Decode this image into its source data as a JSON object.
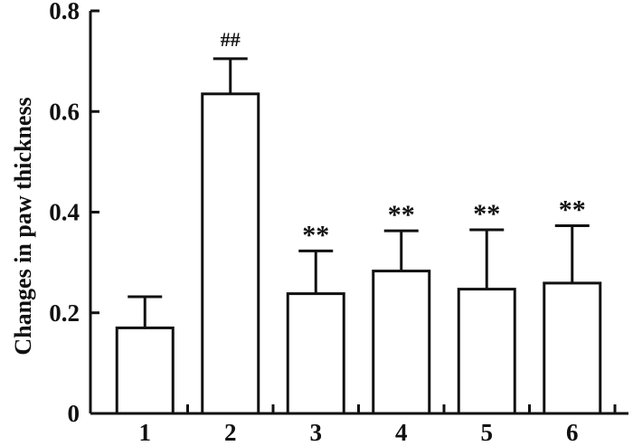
{
  "chart_data": {
    "type": "bar",
    "title": "",
    "xlabel": "",
    "ylabel": "Changes in paw thickness",
    "categories": [
      "1",
      "2",
      "3",
      "4",
      "5",
      "6"
    ],
    "values": [
      0.17,
      0.635,
      0.238,
      0.283,
      0.247,
      0.259
    ],
    "error_upper": [
      0.232,
      0.705,
      0.323,
      0.363,
      0.365,
      0.373
    ],
    "annotations": [
      "",
      "##",
      "**",
      "**",
      "**",
      "**"
    ],
    "ylim": [
      0,
      0.8
    ],
    "yticks": [
      0,
      0.2,
      0.4,
      0.6,
      0.8
    ],
    "ytick_labels": [
      "0",
      "0.2",
      "0.4",
      "0.6",
      "0.8"
    ],
    "grid": false,
    "bar_fill": "#ffffff",
    "line_color": "#111111"
  }
}
